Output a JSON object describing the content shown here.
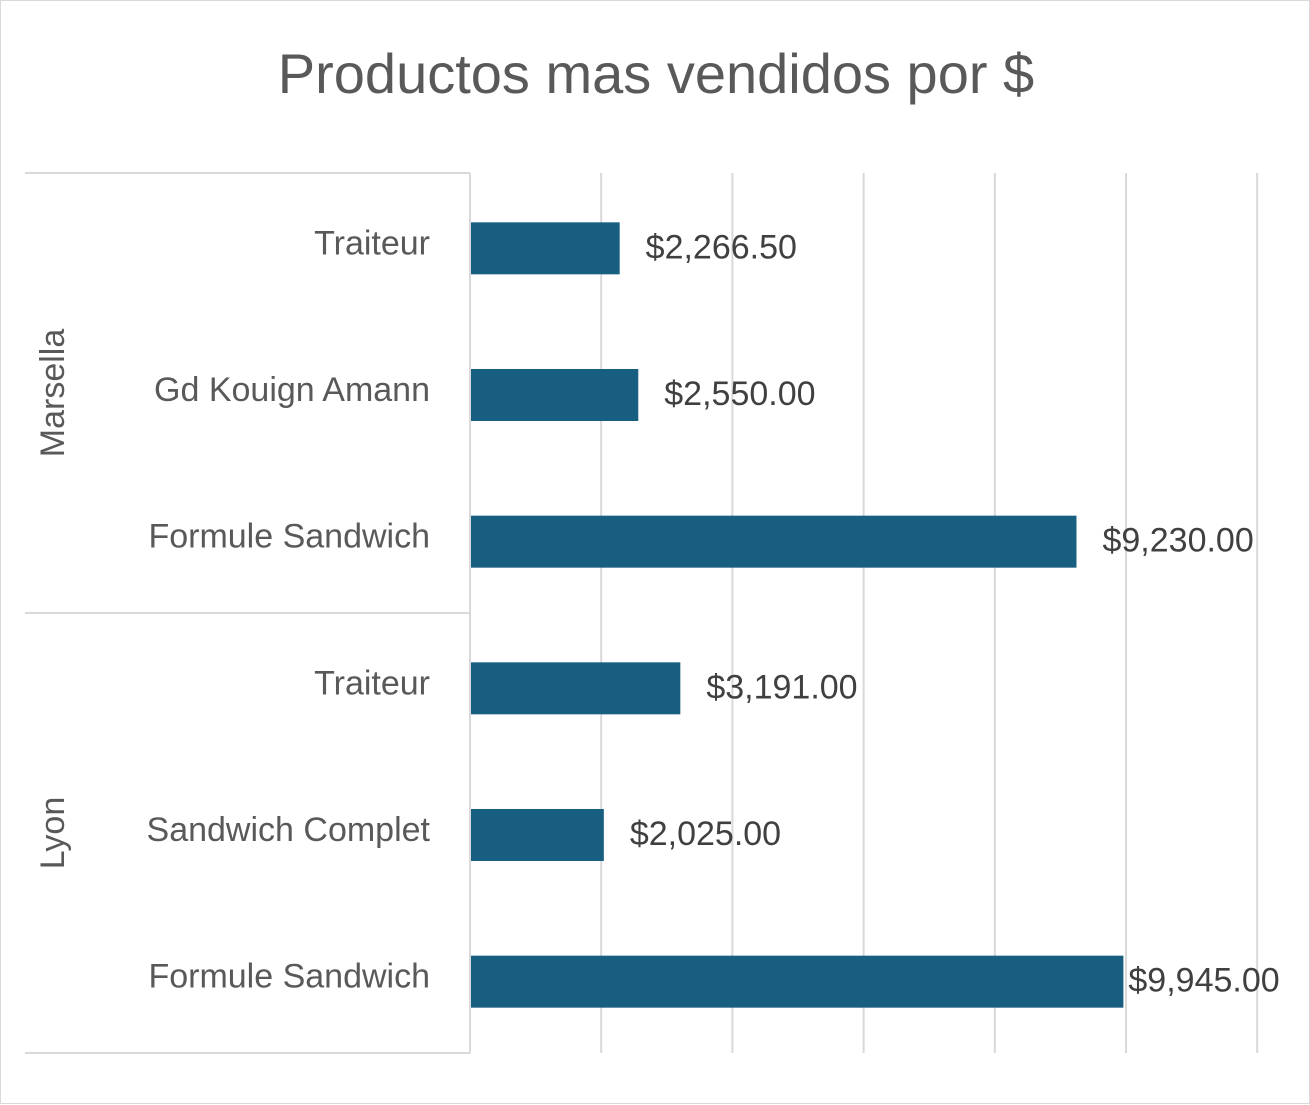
{
  "chart_data": {
    "type": "bar",
    "orientation": "horizontal",
    "title": "Productos mas vendidos por $",
    "groups": [
      {
        "name": "Marsella",
        "items": [
          {
            "category": "Traiteur",
            "value": 2266.5,
            "label": "$2,266.50"
          },
          {
            "category": "Gd Kouign Amann",
            "value": 2550.0,
            "label": "$2,550.00"
          },
          {
            "category": "Formule Sandwich",
            "value": 9230.0,
            "label": "$9,230.00"
          }
        ]
      },
      {
        "name": "Lyon",
        "items": [
          {
            "category": "Traiteur",
            "value": 3191.0,
            "label": "$3,191.00"
          },
          {
            "category": "Sandwich Complet",
            "value": 2025.0,
            "label": "$2,025.00"
          },
          {
            "category": "Formule Sandwich",
            "value": 9945.0,
            "label": "$9,945.00"
          }
        ]
      }
    ],
    "xlim": [
      0,
      12000
    ],
    "x_gridline_step": 2000,
    "grid": true,
    "legend": "none",
    "colors": {
      "bar": "#175e80",
      "gridline": "#d9d9d9",
      "text": "#404040",
      "category_text": "#595959"
    }
  }
}
